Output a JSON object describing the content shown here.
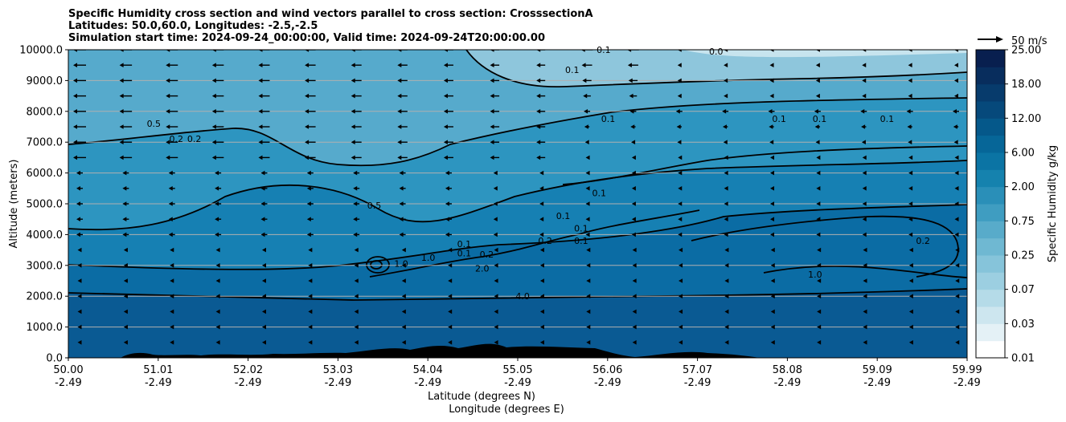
{
  "chart_data": {
    "type": "contour",
    "title_lines": [
      "Specific Humidity cross section and wind vectors parallel to cross section: CrosssectionA",
      "Latitudes: 50.0,60.0, Longitudes: -2.5,-2.5",
      "Simulation start time: 2024-09-24_00:00:00, Valid time: 2024-09-24T20:00:00.00"
    ],
    "ylabel": "Altitude (meters)",
    "xlabel_lines": [
      "Latitude (degrees N)",
      "Longitude (degrees E)"
    ],
    "ylim": [
      0,
      10000
    ],
    "y_ticks": [
      "0.0",
      "1000.0",
      "2000.0",
      "3000.0",
      "4000.0",
      "5000.0",
      "6000.0",
      "7000.0",
      "8000.0",
      "9000.0",
      "10000.0"
    ],
    "x_ticks": [
      {
        "lat": "50.00",
        "lon": "-2.49"
      },
      {
        "lat": "51.01",
        "lon": "-2.49"
      },
      {
        "lat": "52.02",
        "lon": "-2.49"
      },
      {
        "lat": "53.03",
        "lon": "-2.49"
      },
      {
        "lat": "54.04",
        "lon": "-2.49"
      },
      {
        "lat": "55.05",
        "lon": "-2.49"
      },
      {
        "lat": "56.06",
        "lon": "-2.49"
      },
      {
        "lat": "57.07",
        "lon": "-2.49"
      },
      {
        "lat": "58.08",
        "lon": "-2.49"
      },
      {
        "lat": "59.09",
        "lon": "-2.49"
      },
      {
        "lat": "59.99",
        "lon": "-2.49"
      }
    ],
    "grid": "horizontal",
    "colorbar": {
      "label": "Specific Humidity g/kg",
      "tick_labels": [
        "0.01",
        "0.03",
        "0.07",
        "0.25",
        "0.75",
        "2.00",
        "6.00",
        "12.00",
        "18.00",
        "25.00"
      ]
    },
    "quiver_key": "50 m/s",
    "contour_labels": [
      {
        "text": "0.1",
        "lat": 56.0,
        "alt": 7650
      },
      {
        "text": "0.1",
        "lat": 55.9,
        "alt": 5250
      },
      {
        "text": "0.1",
        "lat": 57.9,
        "alt": 7650
      },
      {
        "text": "0.1",
        "lat": 58.35,
        "alt": 7650
      },
      {
        "text": "0.1",
        "lat": 59.1,
        "alt": 7650
      },
      {
        "text": "0.1",
        "lat": 55.6,
        "alt": 9250
      },
      {
        "text": "0.1",
        "lat": 55.95,
        "alt": 9900
      },
      {
        "text": "0.0",
        "lat": 57.2,
        "alt": 9850
      },
      {
        "text": "0.2",
        "lat": 51.2,
        "alt": 7000
      },
      {
        "text": "0.2",
        "lat": 51.4,
        "alt": 7000
      },
      {
        "text": "0.5",
        "lat": 50.95,
        "alt": 7500
      },
      {
        "text": "0.5",
        "lat": 53.4,
        "alt": 4850
      },
      {
        "text": "0.1",
        "lat": 55.5,
        "alt": 4500
      },
      {
        "text": "0.1",
        "lat": 55.7,
        "alt": 4100
      },
      {
        "text": "0.1",
        "lat": 55.7,
        "alt": 3700
      },
      {
        "text": "0.2",
        "lat": 55.3,
        "alt": 3700
      },
      {
        "text": "0.1",
        "lat": 54.4,
        "alt": 3600
      },
      {
        "text": "0.1",
        "lat": 54.4,
        "alt": 3300
      },
      {
        "text": "1.0",
        "lat": 54.0,
        "alt": 3150
      },
      {
        "text": "0.2",
        "lat": 54.65,
        "alt": 3250
      },
      {
        "text": "2.0",
        "lat": 54.6,
        "alt": 2800
      },
      {
        "text": "4.0",
        "lat": 55.05,
        "alt": 1900
      },
      {
        "text": "1.0",
        "lat": 58.3,
        "alt": 2600
      },
      {
        "text": "0.2",
        "lat": 59.5,
        "alt": 3700
      },
      {
        "text": "1.0",
        "lat": 53.7,
        "alt": 2950
      }
    ]
  }
}
